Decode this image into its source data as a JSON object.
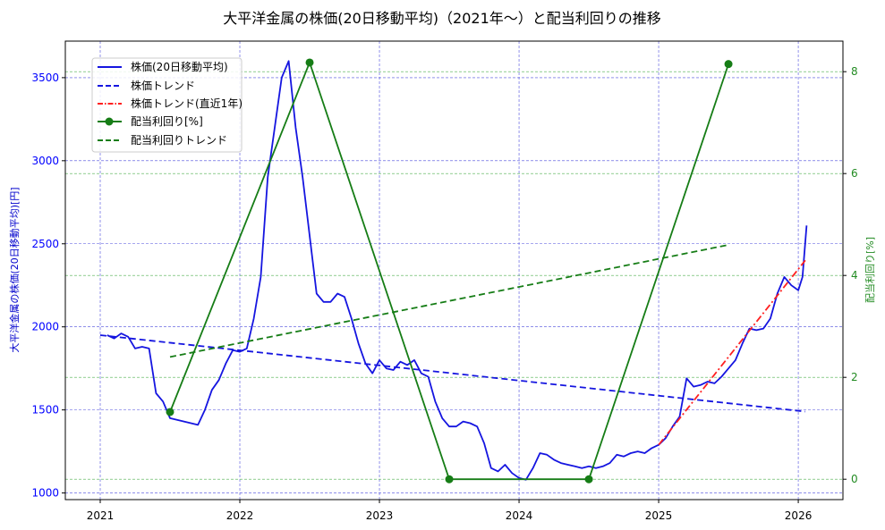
{
  "chart_data": {
    "type": "line",
    "title": "大平洋金属の株価(20日移動平均)（2021年〜）と配当利回りの推移",
    "xlabel": "",
    "ylabel_left": "大平洋金属の株価(20日移動平均)[円]",
    "ylabel_right": "配当利回り[%]",
    "x_ticks": [
      "2021",
      "2022",
      "2023",
      "2024",
      "2025",
      "2026"
    ],
    "y_left_ticks": [
      "1000",
      "1500",
      "2000",
      "2500",
      "3000",
      "3500"
    ],
    "y_right_ticks": [
      "0",
      "2",
      "4",
      "6",
      "8"
    ],
    "xlim": [
      2020.75,
      2026.32
    ],
    "ylim_left": [
      960,
      3720
    ],
    "ylim_right": [
      -0.4,
      8.6
    ],
    "grid": true,
    "legend_position": "upper left",
    "legend": [
      "株価(20日移動平均)",
      "株価トレンド",
      "株価トレンド(直近1年)",
      "配当利回り[%]",
      "配当利回りトレンド"
    ],
    "colors": {
      "price": "#1515e0",
      "price_trend": "#1515e0",
      "price_trend_recent": "#ff2020",
      "dividend": "#167d16",
      "dividend_trend": "#167d16",
      "grid_left": "#4b4bdd",
      "grid_right": "#4caf4c"
    },
    "series": [
      {
        "name": "株価(20日移動平均)",
        "axis": "left",
        "style": "solid",
        "x": [
          2021.05,
          2021.1,
          2021.15,
          2021.2,
          2021.25,
          2021.3,
          2021.35,
          2021.4,
          2021.45,
          2021.5,
          2021.55,
          2021.6,
          2021.65,
          2021.7,
          2021.75,
          2021.8,
          2021.85,
          2021.9,
          2021.95,
          2022.0,
          2022.05,
          2022.1,
          2022.15,
          2022.2,
          2022.25,
          2022.3,
          2022.35,
          2022.4,
          2022.45,
          2022.5,
          2022.55,
          2022.6,
          2022.65,
          2022.7,
          2022.75,
          2022.8,
          2022.85,
          2022.9,
          2022.95,
          2023.0,
          2023.05,
          2023.1,
          2023.15,
          2023.2,
          2023.25,
          2023.3,
          2023.35,
          2023.4,
          2023.45,
          2023.5,
          2023.55,
          2023.6,
          2023.65,
          2023.7,
          2023.75,
          2023.8,
          2023.85,
          2023.9,
          2023.95,
          2024.0,
          2024.05,
          2024.1,
          2024.15,
          2024.2,
          2024.25,
          2024.3,
          2024.35,
          2024.4,
          2024.45,
          2024.5,
          2024.55,
          2024.6,
          2024.65,
          2024.7,
          2024.75,
          2024.8,
          2024.85,
          2024.9,
          2024.95,
          2025.0,
          2025.05,
          2025.1,
          2025.15,
          2025.2,
          2025.25,
          2025.3,
          2025.35,
          2025.4,
          2025.45,
          2025.5,
          2025.55,
          2025.6,
          2025.65,
          2025.7,
          2025.75,
          2025.8,
          2025.85,
          2025.9,
          2025.95,
          2026.0,
          2026.03,
          2026.06
        ],
        "values": [
          1950,
          1930,
          1960,
          1940,
          1870,
          1880,
          1870,
          1600,
          1550,
          1450,
          1440,
          1430,
          1420,
          1410,
          1500,
          1620,
          1680,
          1780,
          1860,
          1850,
          1870,
          2050,
          2300,
          2900,
          3200,
          3500,
          3600,
          3200,
          2900,
          2550,
          2200,
          2150,
          2150,
          2200,
          2180,
          2050,
          1900,
          1780,
          1720,
          1800,
          1750,
          1740,
          1790,
          1770,
          1800,
          1720,
          1700,
          1550,
          1450,
          1400,
          1400,
          1430,
          1420,
          1400,
          1300,
          1150,
          1130,
          1170,
          1120,
          1090,
          1080,
          1150,
          1240,
          1230,
          1200,
          1180,
          1170,
          1160,
          1150,
          1160,
          1150,
          1160,
          1180,
          1230,
          1220,
          1240,
          1250,
          1240,
          1270,
          1290,
          1330,
          1400,
          1460,
          1690,
          1640,
          1650,
          1670,
          1660,
          1700,
          1750,
          1800,
          1900,
          1990,
          1980,
          1990,
          2050,
          2200,
          2300,
          2250,
          2220,
          2300,
          2610
        ]
      },
      {
        "name": "株価トレンド",
        "axis": "left",
        "style": "dashed",
        "x": [
          2021.0,
          2026.05
        ],
        "values": [
          1950,
          1490
        ]
      },
      {
        "name": "株価トレンド(直近1年)",
        "axis": "left",
        "style": "dashdot",
        "x": [
          2025.0,
          2026.05
        ],
        "values": [
          1290,
          2400
        ]
      },
      {
        "name": "配当利回り[%]",
        "axis": "right",
        "style": "solid-marker",
        "x": [
          2021.5,
          2022.5,
          2023.5,
          2024.5,
          2025.5
        ],
        "values": [
          1.32,
          8.18,
          0.0,
          0.0,
          8.15
        ]
      },
      {
        "name": "配当利回りトレンド",
        "axis": "right",
        "style": "dashed",
        "x": [
          2021.5,
          2025.5
        ],
        "values": [
          2.4,
          4.6
        ]
      }
    ]
  }
}
